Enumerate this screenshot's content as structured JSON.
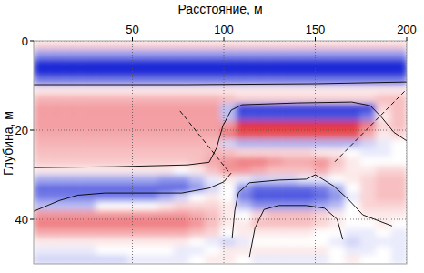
{
  "chart_data": {
    "type": "heatmap",
    "xlabel": "Расстояние, м",
    "ylabel": "Глубина, м",
    "xlim": [
      -4,
      200
    ],
    "ylim": [
      0,
      50
    ],
    "xticks": [
      50,
      100,
      150,
      200
    ],
    "yticks": [
      0,
      20,
      40
    ],
    "grid": true,
    "zlim": [
      -1,
      1
    ],
    "x_edges": [
      -4,
      4.5,
      13,
      21.5,
      30,
      38.5,
      47,
      55.5,
      64,
      72.5,
      81,
      89.5,
      98,
      106.5,
      115,
      123.5,
      132,
      140.5,
      149,
      157.5,
      166,
      174.5,
      183,
      191.5,
      200
    ],
    "y_edges": [
      0,
      2,
      4,
      6,
      8,
      10,
      12,
      14,
      16,
      18,
      20,
      22,
      24,
      26,
      28,
      30,
      32,
      34,
      36,
      38,
      40,
      42,
      44,
      46,
      48,
      50
    ],
    "cells": [
      [
        0.2,
        0.2,
        0.2,
        0.2,
        0.2,
        0.2,
        0.2,
        0.2,
        0.2,
        0.2,
        0.2,
        0.2,
        0.2,
        0.2,
        0.2,
        0.2,
        0.2,
        0.2,
        0.2,
        0.2,
        0.2,
        0.2,
        0.2,
        0.2
      ],
      [
        -0.5,
        -0.5,
        -0.5,
        -0.5,
        -0.5,
        -0.5,
        -0.5,
        -0.5,
        -0.5,
        -0.5,
        -0.5,
        -0.5,
        -0.5,
        -0.5,
        -0.5,
        -0.5,
        -0.5,
        -0.5,
        -0.5,
        -0.5,
        -0.5,
        -0.5,
        -0.5,
        -0.5
      ],
      [
        -1,
        -1,
        -1,
        -1,
        -1,
        -1,
        -1,
        -1,
        -1,
        -1,
        -1,
        -1,
        -1,
        -1,
        -1,
        -1,
        -1,
        -1,
        -1,
        -1,
        -1,
        -1,
        -1,
        -1
      ],
      [
        -1,
        -1,
        -1,
        -1,
        -1,
        -1,
        -1,
        -1,
        -1,
        -1,
        -1,
        -1,
        -1,
        -1,
        -1,
        -1,
        -1,
        -1,
        -1,
        -1,
        -1,
        -1,
        -1,
        -1
      ],
      [
        -0.6,
        -0.6,
        -0.6,
        -0.6,
        -0.6,
        -0.6,
        -0.6,
        -0.6,
        -0.6,
        -0.6,
        -0.6,
        -0.6,
        -0.6,
        -0.6,
        -0.6,
        -0.6,
        -0.6,
        -0.6,
        -0.6,
        -0.6,
        -0.6,
        -0.6,
        -0.6,
        -0.6
      ],
      [
        0.1,
        0.1,
        0.1,
        0.1,
        0.1,
        0.1,
        0.1,
        0.1,
        0.1,
        0.1,
        0.1,
        0.1,
        0.1,
        0.1,
        0.1,
        0.1,
        0.1,
        0.1,
        0.1,
        0.1,
        0.1,
        0.1,
        0.1,
        0.1
      ],
      [
        0.35,
        0.35,
        0.35,
        0.35,
        0.35,
        0.35,
        0.35,
        0.35,
        0.35,
        0.35,
        0.35,
        0.35,
        0.3,
        0.2,
        0.2,
        0.2,
        0.2,
        0.2,
        0.2,
        0.2,
        0.2,
        0.2,
        0.3,
        0.3
      ],
      [
        0.45,
        0.45,
        0.45,
        0.45,
        0.45,
        0.45,
        0.45,
        0.45,
        0.45,
        0.45,
        0.45,
        0.45,
        -0.3,
        -0.9,
        -0.9,
        -0.9,
        -0.9,
        -0.9,
        -0.9,
        -0.9,
        -0.9,
        -0.9,
        0.2,
        0.3
      ],
      [
        0.45,
        0.45,
        0.45,
        0.45,
        0.45,
        0.45,
        0.45,
        0.45,
        0.45,
        0.45,
        0.45,
        0.45,
        -0.3,
        -0.8,
        -0.8,
        -0.8,
        -0.8,
        -0.8,
        -0.8,
        -0.8,
        -0.8,
        -0.6,
        0.1,
        0.3
      ],
      [
        0.45,
        0.45,
        0.45,
        0.45,
        0.45,
        0.45,
        0.45,
        0.45,
        0.45,
        0.45,
        0.45,
        0.45,
        0.5,
        0.95,
        0.95,
        0.95,
        0.95,
        0.95,
        0.95,
        0.95,
        0.95,
        0.6,
        0.2,
        0.3
      ],
      [
        0.4,
        0.4,
        0.4,
        0.4,
        0.4,
        0.4,
        0.4,
        0.4,
        0.4,
        0.4,
        0.4,
        0.4,
        0.6,
        0.8,
        0.8,
        0.8,
        0.8,
        0.8,
        0.8,
        0.8,
        0.8,
        0.4,
        0.1,
        0.2
      ],
      [
        0.35,
        0.35,
        0.35,
        0.35,
        0.35,
        0.35,
        0.35,
        0.35,
        0.35,
        0.35,
        0.35,
        0.3,
        -0.2,
        -0.35,
        -0.35,
        -0.35,
        -0.35,
        -0.35,
        -0.35,
        -0.35,
        -0.35,
        -0.2,
        -0.1,
        0
      ],
      [
        0.3,
        0.3,
        0.3,
        0.3,
        0.3,
        0.3,
        0.3,
        0.3,
        0.3,
        0.3,
        0.3,
        0.35,
        0.3,
        0.2,
        0.2,
        0.2,
        0.2,
        0.2,
        0.1,
        0.1,
        0,
        -0.1,
        -0.1,
        0
      ],
      [
        0.25,
        0.25,
        0.25,
        0.25,
        0.25,
        0.25,
        0.25,
        0.25,
        0.25,
        0.25,
        0.3,
        0.4,
        0.5,
        0.6,
        0.6,
        0.5,
        0.4,
        0.4,
        0.5,
        0.3,
        0.1,
        0,
        0,
        0
      ],
      [
        0.1,
        0.1,
        0.1,
        0.1,
        0.1,
        0.1,
        0.1,
        0.1,
        0.1,
        0,
        0.1,
        0.3,
        0.5,
        0.5,
        0.4,
        0.3,
        0.3,
        0.3,
        0.4,
        0.2,
        0.1,
        0.1,
        0.2,
        0.2
      ],
      [
        -0.4,
        -0.4,
        -0.4,
        -0.4,
        -0.4,
        -0.4,
        -0.4,
        -0.4,
        -0.5,
        -0.5,
        -0.3,
        -0.1,
        0.1,
        -0.1,
        -0.2,
        -0.2,
        -0.2,
        -0.1,
        -0.1,
        0,
        0.1,
        0.2,
        0.3,
        0.3
      ],
      [
        -0.7,
        -0.7,
        -0.7,
        -0.7,
        -0.7,
        -0.7,
        -0.7,
        -0.7,
        -0.7,
        -0.7,
        -0.5,
        -0.2,
        0,
        -0.5,
        -0.7,
        -0.7,
        -0.7,
        -0.7,
        -0.6,
        -0.4,
        0,
        0.2,
        0.3,
        0.3
      ],
      [
        -0.6,
        -0.6,
        -0.6,
        -0.6,
        -0.6,
        -0.6,
        -0.6,
        -0.6,
        -0.4,
        -0.2,
        0,
        0.1,
        0,
        -0.6,
        -0.8,
        -0.8,
        -0.8,
        -0.8,
        -0.7,
        -0.5,
        -0.1,
        0.2,
        0.3,
        0.3
      ],
      [
        -0.3,
        -0.3,
        -0.3,
        -0.3,
        0,
        0,
        0,
        0,
        0.1,
        0.2,
        0.2,
        0.2,
        0.1,
        -0.3,
        -0.5,
        -0.5,
        -0.5,
        -0.5,
        -0.4,
        -0.3,
        0,
        0.2,
        0.2,
        0.2
      ],
      [
        0.5,
        0.5,
        0.5,
        0.5,
        0.5,
        0.5,
        0.5,
        0.5,
        0.5,
        0.5,
        0.4,
        0.3,
        0.1,
        0,
        0.2,
        0.3,
        0.3,
        0.3,
        0.2,
        0.1,
        0,
        0.1,
        0.1,
        0.1
      ],
      [
        0.6,
        0.6,
        0.6,
        0.6,
        0.6,
        0.6,
        0.6,
        0.6,
        0.6,
        0.6,
        0.5,
        0.3,
        0.1,
        0.1,
        0.3,
        0.3,
        0.3,
        0.3,
        0.2,
        0.1,
        0,
        0,
        0.1,
        0
      ],
      [
        0.4,
        0.4,
        0.4,
        0.4,
        0.4,
        0.4,
        0.4,
        0.4,
        0.4,
        0.4,
        0.3,
        0.2,
        0,
        0.1,
        0.1,
        0.1,
        0.1,
        0.1,
        0,
        0,
        -0.1,
        -0.1,
        0,
        -0.1
      ],
      [
        0.1,
        0.1,
        0.1,
        0.1,
        0.1,
        0.1,
        0.1,
        0.1,
        0.1,
        0.1,
        0,
        -0.1,
        -0.2,
        -0.1,
        0,
        0,
        0,
        0,
        0,
        -0.1,
        -0.2,
        -0.1,
        -0.1,
        -0.1
      ],
      [
        -0.1,
        -0.1,
        -0.1,
        -0.1,
        0,
        0,
        0,
        0,
        0,
        -0.1,
        -0.1,
        0,
        0.1,
        0.1,
        0.1,
        0.1,
        0.1,
        0.1,
        0.1,
        0,
        -0.1,
        -0.1,
        0,
        -0.1
      ],
      [
        -0.2,
        -0.2,
        -0.2,
        -0.2,
        -0.2,
        -0.2,
        -0.1,
        -0.1,
        -0.1,
        -0.1,
        0,
        0.1,
        0.1,
        0,
        -0.1,
        -0.1,
        -0.1,
        -0.1,
        -0.1,
        0,
        0.1,
        0,
        0,
        -0.1
      ]
    ],
    "series": [
      {
        "line_style": "solid",
        "color": "black",
        "x": [
          -4,
          80,
          150,
          200
        ],
        "y": [
          9.8,
          9.8,
          9.6,
          9.2
        ]
      },
      {
        "line_style": "solid",
        "color": "black",
        "x": [
          -4,
          40,
          80,
          92,
          96,
          99.5,
          104,
          110,
          140,
          170,
          180,
          186,
          193,
          200
        ],
        "y": [
          28.4,
          28.2,
          27.8,
          27.2,
          24,
          19,
          15.5,
          14.3,
          13.9,
          13.7,
          14.5,
          17,
          20.5,
          22.4
        ]
      },
      {
        "line_style": "solid",
        "color": "black",
        "x": [
          -4,
          10,
          20,
          35,
          77,
          92,
          100,
          104
        ],
        "y": [
          38.2,
          35.8,
          34.6,
          34.1,
          34.1,
          33,
          31.6,
          29.6
        ]
      },
      {
        "line_style": "solid",
        "color": "black",
        "x": [
          104.5,
          106,
          108,
          114,
          130,
          145,
          150,
          154,
          160,
          168,
          176,
          192
        ],
        "y": [
          44.3,
          38,
          34,
          31.8,
          31.2,
          31,
          30,
          31,
          32.5,
          35.5,
          39,
          41.5
        ]
      },
      {
        "line_style": "solid",
        "color": "black",
        "x": [
          114,
          117,
          122,
          130,
          145,
          155,
          162,
          165
        ],
        "y": [
          48.4,
          42,
          37.8,
          36.9,
          36.9,
          37.5,
          40,
          44.5
        ]
      },
      {
        "line_style": "dashed",
        "color": "black",
        "x": [
          76,
          103
        ],
        "y": [
          15.7,
          29.5
        ]
      },
      {
        "line_style": "dashed",
        "color": "black",
        "x": [
          160.7,
          200
        ],
        "y": [
          27.1,
          10.8
        ]
      }
    ]
  }
}
